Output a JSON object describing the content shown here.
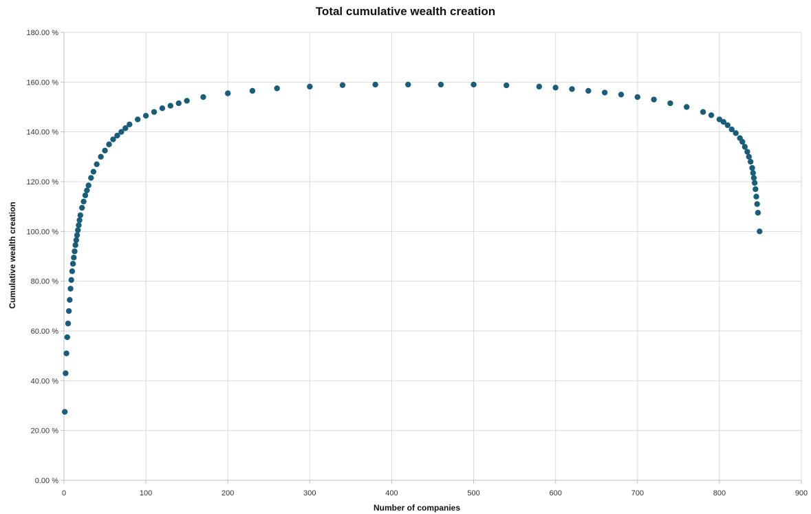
{
  "chart_data": {
    "type": "scatter",
    "title": "Total cumulative wealth creation",
    "xlabel": "Number of companies",
    "ylabel": "Cumulative wealth creation",
    "xlim": [
      0,
      900
    ],
    "ylim": [
      0,
      180
    ],
    "x_ticks": [
      "0",
      "100",
      "200",
      "300",
      "400",
      "500",
      "600",
      "700",
      "800",
      "900"
    ],
    "y_ticks": [
      "0.00 %",
      "20.00 %",
      "40.00 %",
      "60.00 %",
      "80.00 %",
      "100.00 %",
      "120.00 %",
      "140.00 %",
      "160.00 %",
      "180.00 %"
    ],
    "grid": true,
    "marker_color": "#1a5d7a",
    "series": [
      {
        "name": "",
        "x": [
          1,
          2,
          3,
          4,
          5,
          6,
          7,
          8,
          9,
          10,
          11,
          12,
          13,
          14,
          15,
          16,
          17,
          18,
          19,
          20,
          22,
          24,
          26,
          28,
          30,
          33,
          36,
          40,
          45,
          50,
          55,
          60,
          65,
          70,
          75,
          80,
          90,
          100,
          110,
          120,
          130,
          140,
          150,
          170,
          200,
          230,
          260,
          300,
          340,
          380,
          420,
          460,
          500,
          540,
          580,
          600,
          620,
          640,
          660,
          680,
          700,
          720,
          740,
          760,
          780,
          790,
          800,
          805,
          810,
          815,
          820,
          825,
          828,
          831,
          834,
          836,
          838,
          840,
          841,
          842,
          843,
          844,
          845,
          846,
          847,
          849
        ],
        "y": [
          27.5,
          43,
          51,
          57.5,
          63,
          68,
          72.5,
          77,
          80.5,
          84,
          87,
          89.5,
          92,
          94.5,
          96.5,
          98.5,
          100.5,
          102.5,
          104.5,
          106.5,
          109.5,
          112,
          114.5,
          116.5,
          118.5,
          121.5,
          124,
          127,
          130,
          132.5,
          135,
          137,
          138.5,
          140,
          141.5,
          143,
          145,
          146.5,
          148,
          149.5,
          150.5,
          151.5,
          152.5,
          154,
          155.5,
          156.5,
          157.5,
          158.2,
          158.8,
          159,
          159,
          159,
          159,
          158.7,
          158.2,
          157.8,
          157.2,
          156.5,
          155.8,
          155,
          154,
          153,
          151.5,
          150,
          148,
          146.7,
          145,
          144,
          142.7,
          141,
          139.5,
          137.5,
          136,
          134,
          132,
          130,
          128,
          125.5,
          123.5,
          121.5,
          119.5,
          117,
          114,
          111,
          107.5,
          100
        ]
      }
    ]
  }
}
